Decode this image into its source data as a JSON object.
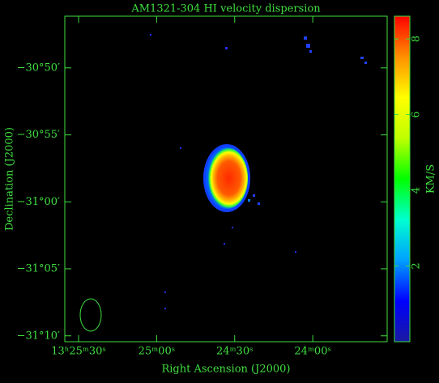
{
  "chart_data": {
    "type": "image",
    "title": "AM1321-304   HI velocity dispersion",
    "x_label": "Right Ascension (J2000)",
    "y_label": "Declination (J2000)",
    "xlim": [
      48335.3,
      48211.4
    ],
    "xticks": [
      {
        "value": 48330,
        "label": "13ʰ25ᵐ30ˢ"
      },
      {
        "value": 48300,
        "label": "25ᵐ00ˢ"
      },
      {
        "value": 48270,
        "label": "24ᵐ30ˢ"
      },
      {
        "value": 48240,
        "label": "24ᵐ00ˢ"
      }
    ],
    "ylim": [
      -31.174,
      -30.769
    ],
    "yticks": [
      {
        "value": -30.8333,
        "label": "−30°50′"
      },
      {
        "value": -30.9167,
        "label": "−30°55′"
      },
      {
        "value": -31.0,
        "label": "−31°00′"
      },
      {
        "value": -31.0833,
        "label": "−31°05′"
      },
      {
        "value": -31.1667,
        "label": "−31°10′"
      }
    ],
    "colorbar": {
      "label": "KM/S",
      "lim": [
        0,
        8.6
      ],
      "ticks": [
        2,
        4,
        6,
        8
      ],
      "colors": [
        "#1a1aa0",
        "#0000ff",
        "#00a0ff",
        "#00ffd0",
        "#00ff00",
        "#c0ff00",
        "#ffff00",
        "#ff9000",
        "#ff0000"
      ]
    }
  }
}
